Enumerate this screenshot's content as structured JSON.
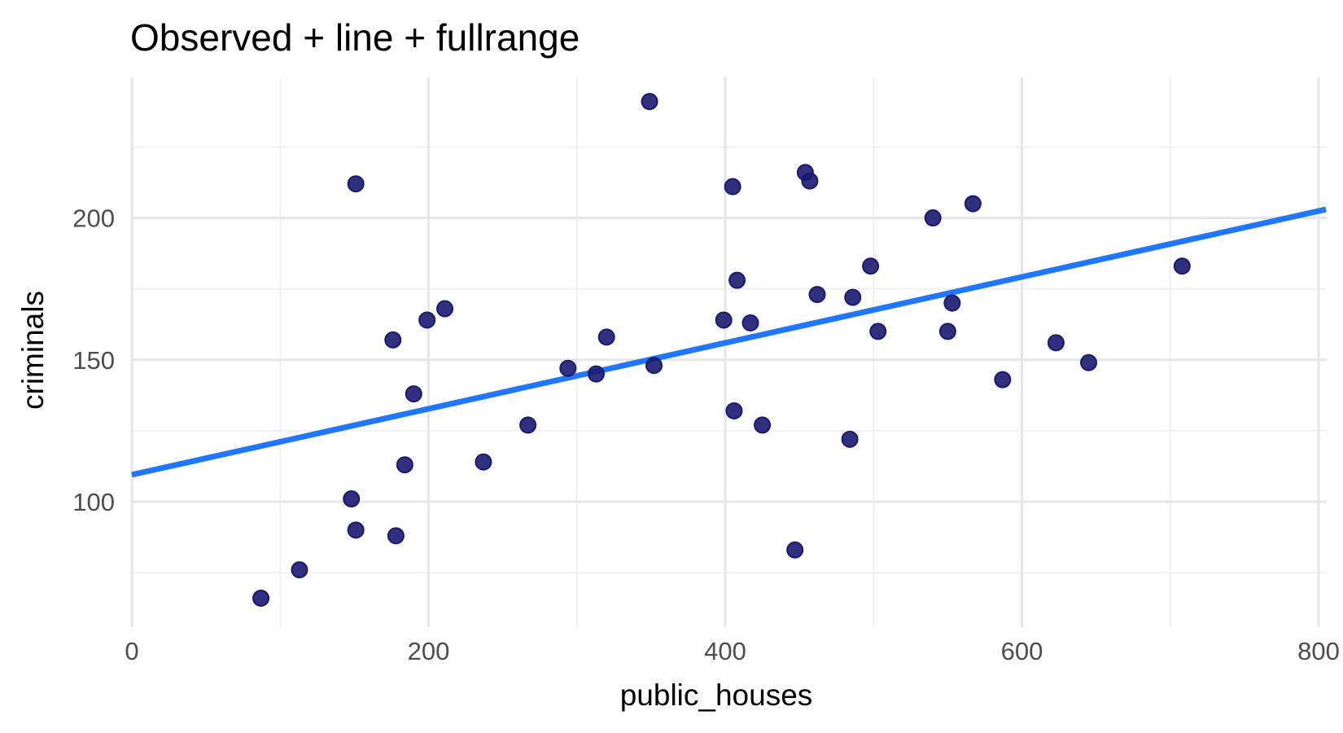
{
  "chart_data": {
    "type": "scatter",
    "title": "Observed + line + fullrange",
    "xlabel": "public_houses",
    "ylabel": "criminals",
    "xlim": [
      0,
      800
    ],
    "ylim": [
      61,
      255
    ],
    "x_ticks": [
      0,
      200,
      400,
      600,
      800
    ],
    "y_ticks": [
      100,
      150,
      200
    ],
    "grid": true,
    "point_color": "#191970",
    "line_color": "#1f77ff",
    "series": [
      {
        "type": "scatter",
        "x": [
          87,
          113,
          148,
          151,
          151,
          176,
          178,
          184,
          190,
          199,
          211,
          237,
          267,
          294,
          313,
          320,
          349,
          352,
          399,
          405,
          406,
          408,
          425,
          417,
          447,
          454,
          457,
          462,
          484,
          486,
          498,
          503,
          540,
          550,
          553,
          567,
          587,
          623,
          645,
          708
        ],
        "y": [
          66,
          76,
          101,
          90,
          212,
          157,
          88,
          113,
          138,
          164,
          168,
          114,
          127,
          147,
          145,
          158,
          241,
          148,
          164,
          211,
          132,
          178,
          127,
          163,
          83,
          216,
          213,
          173,
          122,
          172,
          183,
          160,
          200,
          160,
          170,
          205,
          143,
          156,
          149,
          183
        ]
      },
      {
        "type": "line",
        "x": [
          0,
          805
        ],
        "y": [
          109.5,
          203
        ]
      }
    ]
  }
}
